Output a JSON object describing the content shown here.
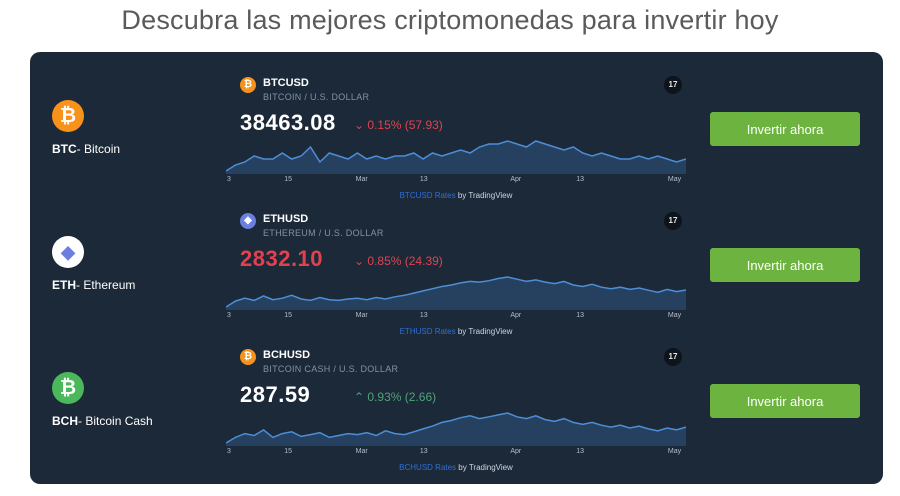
{
  "heading": "Descubra las mejores criptomonedas para invertir hoy",
  "colors": {
    "panel": "#1c2938",
    "button": "#6db33f",
    "up": "#4fa37a",
    "down": "#e0424f",
    "link": "#2f6fd6"
  },
  "cryptos": [
    {
      "coin_icon": "bitcoin-icon",
      "coin_glyph": "₿",
      "icon_color": "#f7931a",
      "ticker": "BTC",
      "name_sep": "- ",
      "name": "Bitcoin",
      "symbol": "BTCUSD",
      "description": "BITCOIN / U.S. DOLLAR",
      "price": "38463.08",
      "price_color": "#ffffff",
      "change_arrow": "⌄",
      "change_text": "0.15% (57.93)",
      "change_color": "#e0424f",
      "button_label": "Invertir ahora",
      "attribution_link": "BTCUSD Rates",
      "attribution_rest": " by TradingView",
      "tv_logo": "17",
      "chart_data": {
        "type": "area",
        "x_ticks": [
          "3",
          "15",
          "Mar",
          "13",
          "Apr",
          "13",
          "May"
        ],
        "values": [
          36,
          38,
          39,
          41,
          40,
          40,
          42,
          40,
          41,
          44,
          39,
          42,
          41,
          40,
          42,
          40,
          41,
          40,
          41,
          41,
          42,
          40,
          42,
          41,
          42,
          43,
          42,
          44,
          45,
          45,
          46,
          45,
          44,
          46,
          45,
          44,
          43,
          44,
          42,
          41,
          42,
          41,
          40,
          40,
          41,
          40,
          41,
          40,
          39,
          40
        ]
      }
    },
    {
      "coin_icon": "ethereum-icon",
      "coin_glyph": "◆",
      "icon_color": "#6a7fe0",
      "ticker": "ETH",
      "name_sep": "- ",
      "name": "Ethereum",
      "symbol": "ETHUSD",
      "description": "ETHEREUM / U.S. DOLLAR",
      "price": "2832.10",
      "price_color": "#e0424f",
      "change_arrow": "⌄",
      "change_text": "0.85% (24.39)",
      "change_color": "#e0424f",
      "button_label": "Invertir ahora",
      "attribution_link": "ETHUSD Rates",
      "attribution_rest": " by TradingView",
      "tv_logo": "17",
      "chart_data": {
        "type": "area",
        "x_ticks": [
          "3",
          "15",
          "Mar",
          "13",
          "Apr",
          "13",
          "May"
        ],
        "values": [
          2600,
          2680,
          2720,
          2690,
          2750,
          2700,
          2720,
          2760,
          2710,
          2690,
          2730,
          2700,
          2690,
          2710,
          2720,
          2700,
          2730,
          2710,
          2740,
          2760,
          2790,
          2820,
          2850,
          2880,
          2900,
          2930,
          2950,
          2940,
          2960,
          2990,
          3010,
          2980,
          2950,
          2970,
          2940,
          2920,
          2950,
          2900,
          2880,
          2910,
          2870,
          2850,
          2870,
          2840,
          2860,
          2830,
          2800,
          2840,
          2810,
          2832
        ]
      }
    },
    {
      "coin_icon": "bitcoin-cash-icon",
      "coin_glyph": "₿",
      "icon_color": "#4cb85c",
      "ticker": "BCH",
      "name_sep": "- ",
      "name": "Bitcoin Cash",
      "symbol": "BCHUSD",
      "description": "BITCOIN CASH / U.S. DOLLAR",
      "price": "287.59",
      "price_color": "#ffffff",
      "change_arrow": "⌃",
      "change_text": "0.93% (2.66)",
      "change_color": "#4fa37a",
      "button_label": "Invertir ahora",
      "attribution_link": "BCHUSD Rates",
      "attribution_rest": " by TradingView",
      "tv_logo": "17",
      "chart_data": {
        "type": "area",
        "x_ticks": [
          "3",
          "15",
          "Mar",
          "13",
          "Apr",
          "13",
          "May"
        ],
        "values": [
          270,
          276,
          280,
          278,
          284,
          276,
          280,
          282,
          277,
          279,
          281,
          276,
          278,
          280,
          279,
          281,
          278,
          283,
          280,
          279,
          282,
          285,
          288,
          292,
          294,
          297,
          299,
          296,
          298,
          300,
          302,
          298,
          296,
          299,
          295,
          293,
          296,
          292,
          290,
          292,
          289,
          287,
          289,
          286,
          288,
          285,
          283,
          286,
          284,
          287
        ]
      }
    }
  ]
}
